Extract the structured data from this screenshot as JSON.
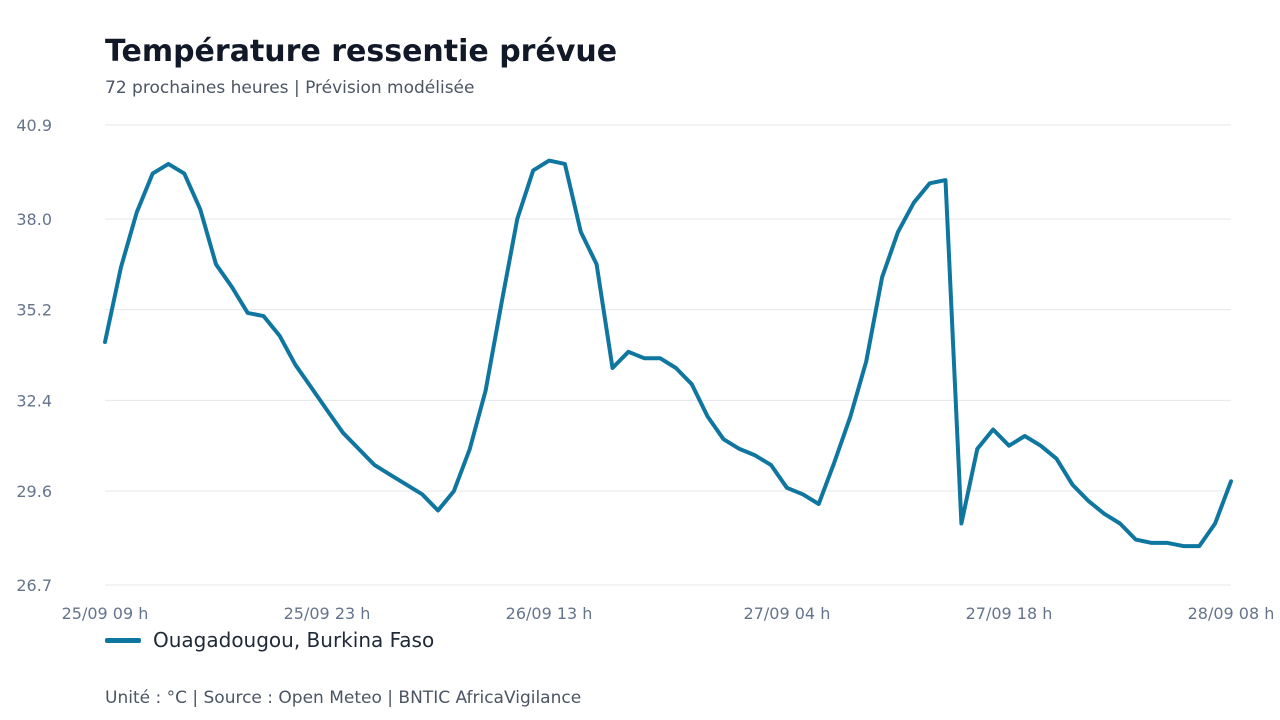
{
  "header": {
    "title": "Température ressentie prévue",
    "subtitle": "72 prochaines heures | Prévision modélisée"
  },
  "footer": {
    "source": "Unité : °C | Source : Open Meteo | BNTIC AfricaVigilance"
  },
  "colors": {
    "line": "#0f76a0",
    "grid": "#e5e7eb",
    "tick": "#64748b"
  },
  "chart_data": {
    "type": "line",
    "title": "Température ressentie prévue",
    "subtitle": "72 prochaines heures | Prévision modélisée",
    "xlabel": "",
    "ylabel": "",
    "unit": "°C",
    "grid": true,
    "legend_position": "bottom-left",
    "ylim": [
      26.7,
      40.9
    ],
    "yticks": [
      "40.9",
      "38.0",
      "35.2",
      "32.4",
      "29.6",
      "26.7"
    ],
    "xticks": [
      {
        "label": "25/09 09 h",
        "index": 0
      },
      {
        "label": "25/09 23 h",
        "index": 14
      },
      {
        "label": "26/09 13 h",
        "index": 28
      },
      {
        "label": "27/09 04 h",
        "index": 43
      },
      {
        "label": "27/09 18 h",
        "index": 57
      },
      {
        "label": "28/09 08 h",
        "index": 71
      }
    ],
    "series": [
      {
        "name": "Ouagadougou, Burkina Faso",
        "color": "#0f76a0",
        "values": [
          34.2,
          36.5,
          38.2,
          39.4,
          39.7,
          39.4,
          38.3,
          36.6,
          35.9,
          35.1,
          35.0,
          34.4,
          33.5,
          32.8,
          32.1,
          31.4,
          30.9,
          30.4,
          30.1,
          29.8,
          29.5,
          29.0,
          29.6,
          30.9,
          32.7,
          35.4,
          38.0,
          39.5,
          39.8,
          39.7,
          37.6,
          36.6,
          33.4,
          33.9,
          33.7,
          33.7,
          33.4,
          32.9,
          31.9,
          31.2,
          30.9,
          30.7,
          30.4,
          29.7,
          29.5,
          29.2,
          30.5,
          31.9,
          33.6,
          36.2,
          37.6,
          38.5,
          39.1,
          39.2,
          28.6,
          30.9,
          31.5,
          31.0,
          31.3,
          31.0,
          30.6,
          29.8,
          29.3,
          28.9,
          28.6,
          28.1,
          28.0,
          28.0,
          27.9,
          27.9,
          28.6,
          29.9
        ]
      }
    ]
  }
}
